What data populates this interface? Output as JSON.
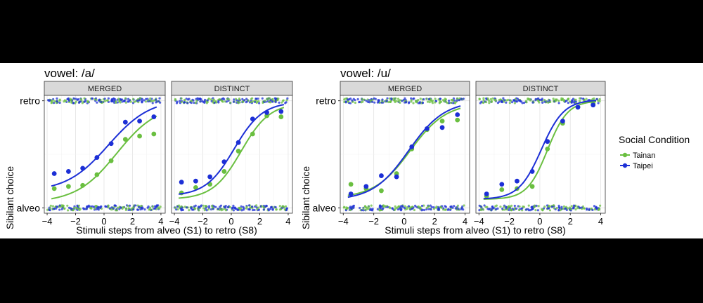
{
  "chart_data": {
    "type": "scatter",
    "xlabel": "Stimuli steps from alveo (S1) to retro (S8)",
    "ylabel": "Sibilant choice",
    "x_ticks": [
      "−4",
      "−2",
      "0",
      "2",
      "4"
    ],
    "x_tick_values": [
      -4,
      -2,
      0,
      2,
      4
    ],
    "y_tick_labels": [
      "alveo",
      "retro"
    ],
    "y_tick_values": [
      0,
      1
    ],
    "xlim": [
      -4.2,
      4.3
    ],
    "ylim": [
      -0.05,
      1.05
    ],
    "grid": true,
    "legend": {
      "title": "Social Condition",
      "position": "right",
      "items": [
        {
          "name": "Tainan",
          "color": "#6abf40"
        },
        {
          "name": "Taipei",
          "color": "#1c2fd6"
        }
      ]
    },
    "steps_x": [
      -3.5,
      -2.5,
      -1.5,
      -0.5,
      0.5,
      1.5,
      2.5,
      3.5
    ],
    "groups": [
      {
        "title": "vowel: /a/",
        "panels": [
          {
            "strip": "MERGED",
            "series": [
              {
                "name": "Tainan",
                "color": "#6abf40",
                "points": [
                  0.18,
                  0.2,
                  0.21,
                  0.31,
                  0.44,
                  0.64,
                  0.67,
                  0.69
                ],
                "fit": {
                  "x0": 0.9,
                  "k": 0.7,
                  "lo": 0.05,
                  "hi": 0.97
                }
              },
              {
                "name": "Taipei",
                "color": "#1c2fd6",
                "points": [
                  0.32,
                  0.34,
                  0.37,
                  0.47,
                  0.6,
                  0.8,
                  0.81,
                  0.85
                ],
                "fit": {
                  "x0": 0.3,
                  "k": 0.68,
                  "lo": 0.15,
                  "hi": 1.02
                }
              }
            ]
          },
          {
            "strip": "DISTINCT",
            "series": [
              {
                "name": "Tainan",
                "color": "#6abf40",
                "points": [
                  0.14,
                  0.19,
                  0.22,
                  0.34,
                  0.53,
                  0.69,
                  0.86,
                  0.85
                ],
                "fit": {
                  "x0": 0.7,
                  "k": 1.0,
                  "lo": 0.08,
                  "hi": 0.98
                }
              },
              {
                "name": "Taipei",
                "color": "#1c2fd6",
                "points": [
                  0.24,
                  0.25,
                  0.29,
                  0.43,
                  0.61,
                  0.83,
                  0.89,
                  0.9
                ],
                "fit": {
                  "x0": 0.2,
                  "k": 1.0,
                  "lo": 0.11,
                  "hi": 0.99
                }
              }
            ]
          }
        ]
      },
      {
        "title": "vowel: /u/",
        "panels": [
          {
            "strip": "MERGED",
            "series": [
              {
                "name": "Tainan",
                "color": "#6abf40",
                "points": [
                  0.22,
                  0.18,
                  0.16,
                  0.32,
                  0.55,
                  0.73,
                  0.81,
                  0.82
                ],
                "fit": {
                  "x0": 0.4,
                  "k": 0.85,
                  "lo": 0.09,
                  "hi": 0.98
                }
              },
              {
                "name": "Taipei",
                "color": "#1c2fd6",
                "points": [
                  0.13,
                  0.2,
                  0.3,
                  0.29,
                  0.57,
                  0.74,
                  0.75,
                  0.87
                ],
                "fit": {
                  "x0": 0.3,
                  "k": 0.85,
                  "lo": 0.07,
                  "hi": 1.0
                }
              }
            ]
          },
          {
            "strip": "DISTINCT",
            "series": [
              {
                "name": "Tainan",
                "color": "#6abf40",
                "points": [
                  0.11,
                  0.17,
                  0.18,
                  0.2,
                  0.55,
                  0.79,
                  0.94,
                  0.97
                ],
                "fit": {
                  "x0": 0.5,
                  "k": 1.5,
                  "lo": 0.08,
                  "hi": 1.0
                }
              },
              {
                "name": "Taipei",
                "color": "#1c2fd6",
                "points": [
                  0.13,
                  0.22,
                  0.25,
                  0.34,
                  0.62,
                  0.81,
                  0.94,
                  0.96
                ],
                "fit": {
                  "x0": 0.1,
                  "k": 1.35,
                  "lo": 0.08,
                  "hi": 1.01
                }
              }
            ]
          }
        ]
      }
    ]
  }
}
